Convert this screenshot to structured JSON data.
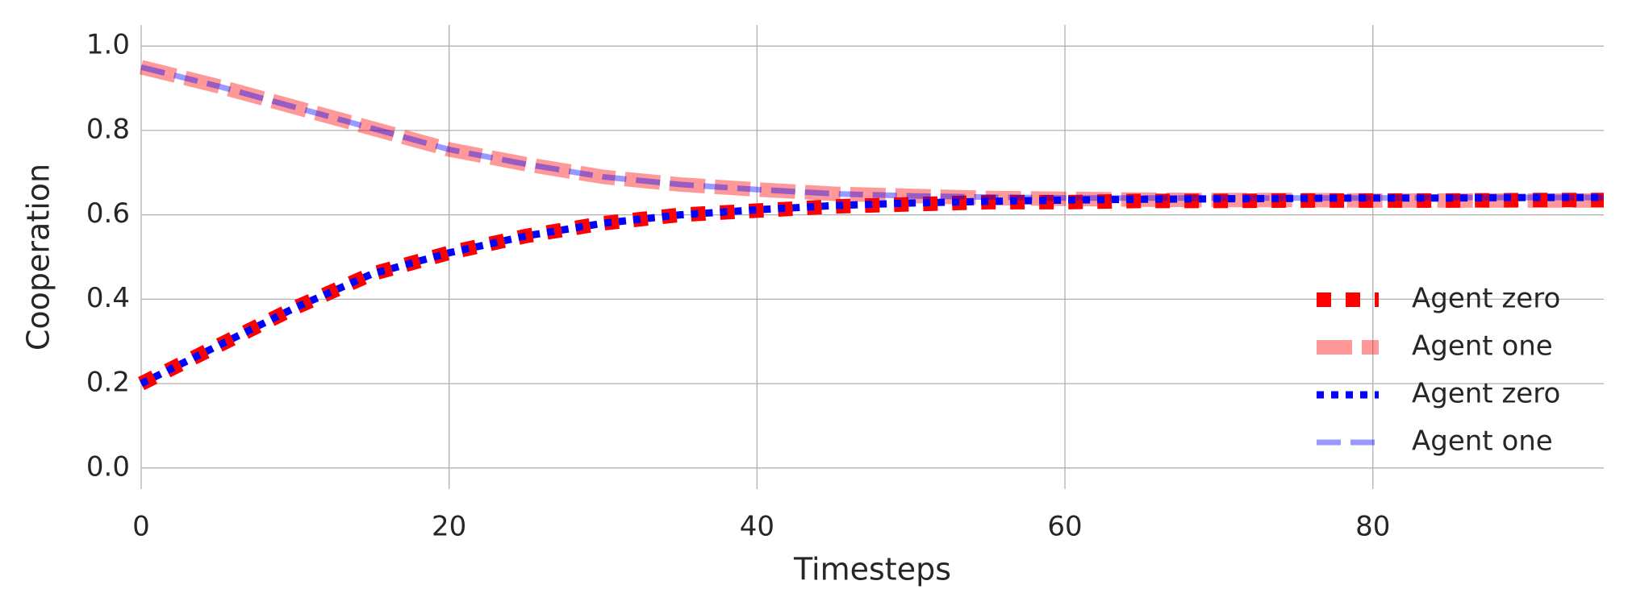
{
  "chart_data": {
    "type": "line",
    "x_label": "Timesteps",
    "y_label": "Cooperation",
    "x": [
      0,
      5,
      10,
      15,
      20,
      25,
      30,
      35,
      40,
      45,
      50,
      55,
      60,
      65,
      70,
      75,
      80,
      85,
      90,
      95
    ],
    "series": [
      {
        "name": "Agent zero",
        "color": "#ff0000",
        "values": [
          0.2,
          0.29,
          0.38,
          0.46,
          0.51,
          0.55,
          0.58,
          0.6,
          0.61,
          0.62,
          0.625,
          0.63,
          0.63,
          0.633,
          0.633,
          0.634,
          0.634,
          0.634,
          0.635,
          0.635
        ]
      },
      {
        "name": "Agent one",
        "color": "#ff0000",
        "values": [
          0.95,
          0.905,
          0.855,
          0.805,
          0.755,
          0.72,
          0.69,
          0.672,
          0.66,
          0.65,
          0.645,
          0.64,
          0.638,
          0.636,
          0.635,
          0.635,
          0.634,
          0.634,
          0.634,
          0.634
        ]
      },
      {
        "name": "Agent zero",
        "color": "#0000ff",
        "values": [
          0.2,
          0.29,
          0.38,
          0.46,
          0.51,
          0.55,
          0.58,
          0.6,
          0.612,
          0.622,
          0.628,
          0.632,
          0.635,
          0.637,
          0.638,
          0.639,
          0.64,
          0.64,
          0.641,
          0.641
        ]
      },
      {
        "name": "Agent one",
        "color": "#0000ff",
        "values": [
          0.95,
          0.905,
          0.855,
          0.805,
          0.755,
          0.72,
          0.69,
          0.672,
          0.66,
          0.65,
          0.645,
          0.642,
          0.64,
          0.64,
          0.64,
          0.64,
          0.64,
          0.641,
          0.641,
          0.641
        ]
      }
    ],
    "xlim": [
      0,
      95
    ],
    "ylim": [
      -0.05,
      1.05
    ],
    "xticks": [
      0,
      20,
      40,
      60,
      80
    ],
    "yticks": [
      {
        "value": 0,
        "label": "0.0"
      },
      0.2,
      0.4,
      0.6,
      0.8,
      {
        "value": 1,
        "label": "1.0"
      }
    ],
    "grid": true,
    "legend": "lower right"
  }
}
